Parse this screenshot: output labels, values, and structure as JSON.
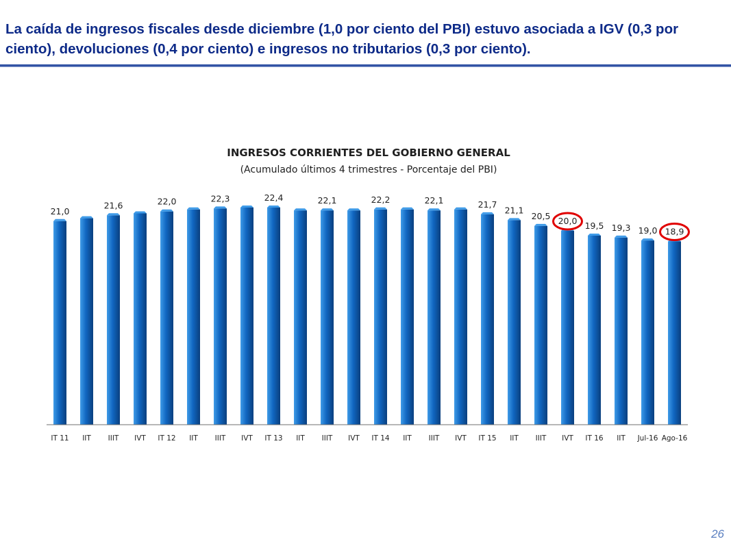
{
  "slide": {
    "title": "La caída de ingresos fiscales desde diciembre (1,0 por ciento del PBI) estuvo asociada a IGV (0,3 por ciento), devoluciones (0,4 por ciento) e ingresos no tributarios (0,3 por ciento).",
    "page_number": "26"
  },
  "colors": {
    "title": "#0d2a88",
    "bar_light": "#3f9be8",
    "bar_mid": "#1066c0",
    "bar_dark": "#0a3f7e",
    "highlight_circle": "#e00000"
  },
  "chart_data": {
    "type": "bar",
    "title": "INGRESOS CORRIENTES DEL GOBIERNO GENERAL",
    "subtitle": "(Acumulado últimos 4 trimestres - Porcentaje del PBI)",
    "xlabel": "",
    "ylabel": "",
    "ylim": [
      0,
      22.4
    ],
    "categories": [
      "IT 11",
      "IIT",
      "IIIT",
      "IVT",
      "IT 12",
      "IIT",
      "IIIT",
      "IVT",
      "IT 13",
      "IIT",
      "IIIT",
      "IVT",
      "IT 14",
      "IIT",
      "IIIT",
      "IVT",
      "IT 15",
      "IIT",
      "IIIT",
      "IVT",
      "IT 16",
      "IIT",
      "Jul-16",
      "Ago-16"
    ],
    "values": [
      21.0,
      21.3,
      21.6,
      21.8,
      22.0,
      22.2,
      22.3,
      22.4,
      22.4,
      22.1,
      22.1,
      22.1,
      22.2,
      22.2,
      22.1,
      22.2,
      21.7,
      21.1,
      20.5,
      20.0,
      19.5,
      19.3,
      19.0,
      18.9
    ],
    "data_labels": [
      "21,0",
      "",
      "21,6",
      "",
      "22,0",
      "",
      "22,3",
      "",
      "22,4",
      "",
      "22,1",
      "",
      "22,2",
      "",
      "22,1",
      "",
      "21,7",
      "21,1",
      "20,5",
      "20,0",
      "19,5",
      "19,3",
      "19,0",
      "18,9"
    ],
    "highlighted_labels": [
      19,
      23
    ],
    "grid": false,
    "legend": "none"
  }
}
